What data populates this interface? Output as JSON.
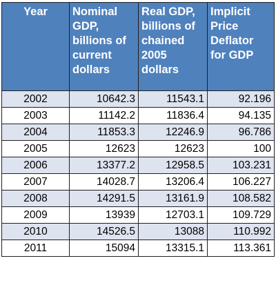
{
  "table": {
    "headers": [
      "Year",
      "Nominal\nGDP,\nbillions of\ncurrent\ndollars",
      "Real GDP,\nbillions of\nchained\n2005\ndollars",
      "Implicit\nPrice\nDeflator\nfor GDP"
    ],
    "rows": [
      [
        "2002",
        "10642.3",
        "11543.1",
        "92.196"
      ],
      [
        "2003",
        "11142.2",
        "11836.4",
        "94.135"
      ],
      [
        "2004",
        "11853.3",
        "12246.9",
        "96.786"
      ],
      [
        "2005",
        "12623",
        "12623",
        "100"
      ],
      [
        "2006",
        "13377.2",
        "12958.5",
        "103.231"
      ],
      [
        "2007",
        "14028.7",
        "13206.4",
        "106.227"
      ],
      [
        "2008",
        "14291.5",
        "13161.9",
        "108.582"
      ],
      [
        "2009",
        "13939",
        "12703.1",
        "109.729"
      ],
      [
        "2010",
        "14526.5",
        "13088",
        "110.992"
      ],
      [
        "2011",
        "15094",
        "13315.1",
        "113.361"
      ]
    ]
  }
}
